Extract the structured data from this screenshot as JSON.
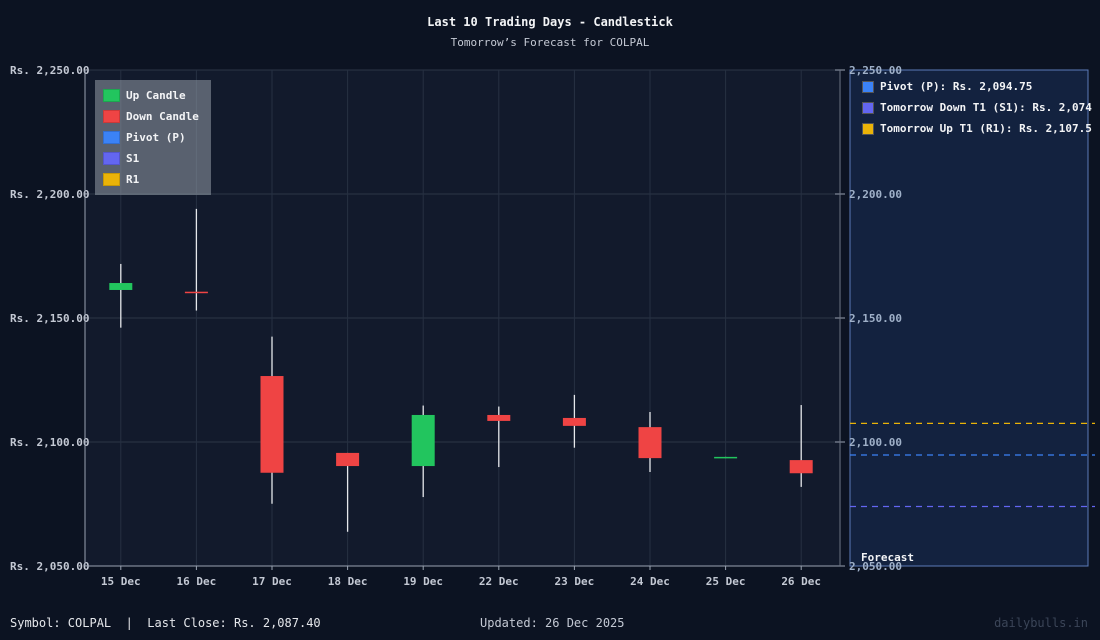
{
  "header": {
    "title": "Last 10 Trading Days - Candlestick",
    "subtitle": "Tomorrow’s Forecast for COLPAL"
  },
  "legend": {
    "items": [
      {
        "label": "Up Candle",
        "color": "#22c55e"
      },
      {
        "label": "Down Candle",
        "color": "#ef4444"
      },
      {
        "label": "Pivot (P)",
        "color": "#3b82f6"
      },
      {
        "label": "S1",
        "color": "#6366f1"
      },
      {
        "label": "R1",
        "color": "#eab308"
      }
    ]
  },
  "forecast_panel": {
    "label": "Forecast",
    "items": [
      {
        "label": "Pivot (P): Rs. 2,094.75",
        "color": "#3b82f6"
      },
      {
        "label": "Tomorrow Down T1 (S1): Rs. 2,074",
        "color": "#6366f1"
      },
      {
        "label": "Tomorrow Up T1 (R1): Rs. 2,107.5",
        "color": "#eab308"
      }
    ]
  },
  "footer": {
    "left": "Symbol: COLPAL  |  Last Close: Rs. 2,087.40",
    "middle": "Updated: 26 Dec 2025",
    "right": "dailybulls.in"
  },
  "chart_data": {
    "type": "candlestick",
    "title": "Last 10 Trading Days - Candlestick",
    "subtitle": "Tomorrow’s Forecast for COLPAL",
    "xlabel": "",
    "ylabel": "",
    "ylim": [
      2050,
      2250
    ],
    "y_ticks": [
      2050,
      2100,
      2150,
      2200,
      2250
    ],
    "y_tick_labels_left": [
      "Rs. 2,050.00",
      "Rs. 2,100.00",
      "Rs. 2,150.00",
      "Rs. 2,200.00",
      "Rs. 2,250.00"
    ],
    "y_tick_labels_right": [
      "2,050.00",
      "2,100.00",
      "2,150.00",
      "2,200.00",
      "2,250.00"
    ],
    "categories": [
      "15 Dec",
      "16 Dec",
      "17 Dec",
      "18 Dec",
      "19 Dec",
      "22 Dec",
      "23 Dec",
      "24 Dec",
      "25 Dec",
      "26 Dec"
    ],
    "candles": [
      {
        "date": "15 Dec",
        "open": 2161.3,
        "high": 2171.8,
        "low": 2146.1,
        "close": 2164.1
      },
      {
        "date": "16 Dec",
        "open": 2160.6,
        "high": 2194.0,
        "low": 2153.0,
        "close": 2160.4
      },
      {
        "date": "17 Dec",
        "open": 2126.6,
        "high": 2142.5,
        "low": 2075.1,
        "close": 2087.6
      },
      {
        "date": "18 Dec",
        "open": 2095.6,
        "high": 2095.6,
        "low": 2063.8,
        "close": 2090.3
      },
      {
        "date": "19 Dec",
        "open": 2090.3,
        "high": 2114.7,
        "low": 2077.8,
        "close": 2110.9
      },
      {
        "date": "22 Dec",
        "open": 2110.9,
        "high": 2114.3,
        "low": 2089.9,
        "close": 2108.5
      },
      {
        "date": "23 Dec",
        "open": 2109.7,
        "high": 2119.0,
        "low": 2097.7,
        "close": 2106.5
      },
      {
        "date": "24 Dec",
        "open": 2106.0,
        "high": 2112.1,
        "low": 2087.9,
        "close": 2093.5
      },
      {
        "date": "25 Dec",
        "open": 2093.5,
        "high": 2094.0,
        "low": 2093.5,
        "close": 2094.0
      },
      {
        "date": "26 Dec",
        "open": 2092.7,
        "high": 2114.9,
        "low": 2081.9,
        "close": 2087.4
      }
    ],
    "forecast_levels": [
      {
        "name": "Pivot (P)",
        "value": 2094.75,
        "color": "#3b82f6"
      },
      {
        "name": "S1",
        "value": 2074.0,
        "color": "#6366f1"
      },
      {
        "name": "R1",
        "value": 2107.5,
        "color": "#eab308"
      }
    ],
    "colors": {
      "up": "#22c55e",
      "down": "#ef4444",
      "wick": "#e5e7eb"
    },
    "grid": true,
    "legend_position": "top-left"
  }
}
